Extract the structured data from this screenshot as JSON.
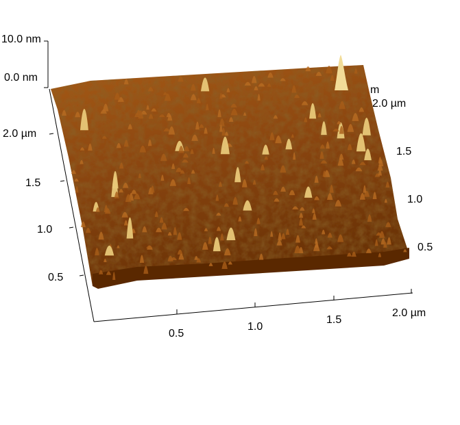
{
  "figure": {
    "z_scale": {
      "max_label": "10.0 nm",
      "min_label": "0.0 nm"
    },
    "left_axis": {
      "ticks": [
        "2.0 µm",
        "1.5",
        "1.0",
        "0.5"
      ]
    },
    "right_axis": {
      "ticks": [
        "2.0 µm",
        "1.5",
        "1.0",
        "0.5"
      ],
      "partial_label": "m"
    },
    "bottom_axis": {
      "ticks": [
        "0.5",
        "1.0",
        "1.5",
        "2.0 µm"
      ]
    },
    "colors": {
      "surface_dark": "#5a2800",
      "surface_mid": "#9a4e10",
      "surface_light": "#f0d890"
    }
  }
}
